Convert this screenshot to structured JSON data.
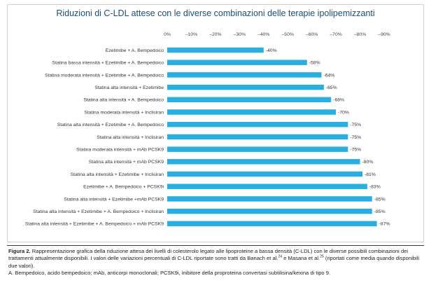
{
  "chart_data": {
    "type": "bar",
    "orientation": "horizontal",
    "title": "Riduzioni di C-LDL attese con le diverse combinazioni delle terapie ipolipemizzanti",
    "categories": [
      "Ezetimibe + A. Bempedoico",
      "Statina bassa intensità + Ezetimibe + A. Bempedoico",
      "Statina moderata intensità + Ezetimibe + A. Bempedoico",
      "Statina alta intensità + Ezetimibe",
      "Statina alta intensità + A. Bempedoico",
      "Statina moderata intensità + Inclisiran",
      "Statina alta intensità + Ezetimibe + A. Bempedoico",
      "Statina alta intensità + Inclisiran",
      "Statina moderata intensità + mAb PCSK9",
      "Statina alta intensità + mAb PCSK9",
      "Statina alta intensità + Ezetimibe + Inclisiran",
      "Ezetimibe + A. Bempedoico + PCSK9i",
      "Statina alta intensità + Ezetimibe +mAb PCSK9",
      "Statina alta intensità + Ezetimibe + A. Bempedoico + Inclisiran",
      "Statina alta intensità + Ezetimibe + A. Bempedoico + mAb PCSK9"
    ],
    "values": [
      -40,
      -58,
      -64,
      -65,
      -68,
      -70,
      -75,
      -75,
      -75,
      -80,
      -81,
      -83,
      -85,
      -85,
      -87
    ],
    "value_labels": [
      "-40%",
      "-58%",
      "-64%",
      "-65%",
      "-68%",
      "-70%",
      "-75%",
      "-75%",
      "-75%",
      "-80%",
      "-81%",
      "-83%",
      "-85%",
      "-85%",
      "-87%"
    ],
    "xlim": [
      0,
      -90
    ],
    "xticks": [
      0,
      -10,
      -20,
      -30,
      -40,
      -50,
      -60,
      -70,
      -80,
      -90
    ],
    "xtick_labels": [
      "0%",
      "–10%",
      "–20%",
      "–30%",
      "–40%",
      "–50%",
      "–60%",
      "–70%",
      "–80%",
      "–90%"
    ],
    "xaxis_position": "top",
    "grid": false,
    "bar_color": "#2aaee0"
  },
  "caption": {
    "lead": "Figura 2.",
    "line1": " Rappresentazione grafica della riduzione attesa dei livelli di colesterolo legato alle lipoproteine a bassa densità (C-LDL) con le diverse possibili combinazioni dei trattamenti attualmente disponibili. I valori delle variazioni percentuali di C-LDL riportate sono tratti da Banach et al.",
    "ref1": "24",
    "line2": " e Masana et al.",
    "ref2": "25",
    "line3": " (riportati come media quando disponibili due valori).",
    "abbrev": "A. Bempedoico, acido bempedoico; mAb, anticorpi monoclonali; PCSK9i, inibitore della proproteina convertasi subtilisina/kexina di tipo 9."
  }
}
